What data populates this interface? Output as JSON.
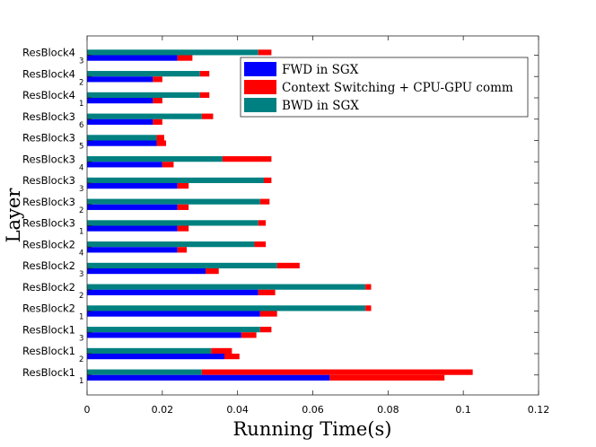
{
  "chart_data": {
    "type": "bar",
    "orientation": "horizontal",
    "stacked": true,
    "title": "",
    "xlabel": "Running Time(s)",
    "ylabel": "Layer",
    "xlim": [
      0,
      0.12
    ],
    "xticks": [
      "0",
      "0.02",
      "0.04",
      "0.06",
      "0.08",
      "0.1",
      "0.12"
    ],
    "grid": false,
    "legend_position": "top-right",
    "legend": [
      {
        "name": "FWD in SGX",
        "color": "#0000ff"
      },
      {
        "name": "Context Switching + CPU-GPU comm",
        "color": "#ff0000"
      },
      {
        "name": "BWD in SGX",
        "color": "#008080"
      }
    ],
    "categories": [
      {
        "label": "ResBlock4",
        "sub": "3"
      },
      {
        "label": "ResBlock4",
        "sub": "2"
      },
      {
        "label": "ResBlock4",
        "sub": "1"
      },
      {
        "label": "ResBlock3",
        "sub": "6"
      },
      {
        "label": "ResBlock3",
        "sub": "5"
      },
      {
        "label": "ResBlock3",
        "sub": "4"
      },
      {
        "label": "ResBlock3",
        "sub": "3"
      },
      {
        "label": "ResBlock3",
        "sub": "2"
      },
      {
        "label": "ResBlock3",
        "sub": "1"
      },
      {
        "label": "ResBlock2",
        "sub": "4"
      },
      {
        "label": "ResBlock2",
        "sub": "3"
      },
      {
        "label": "ResBlock2",
        "sub": "2"
      },
      {
        "label": "ResBlock2",
        "sub": "1"
      },
      {
        "label": "ResBlock1",
        "sub": "3"
      },
      {
        "label": "ResBlock1",
        "sub": "2"
      },
      {
        "label": "ResBlock1",
        "sub": "1"
      }
    ],
    "fwd_bar": {
      "fwd": [
        0.024,
        0.0175,
        0.0175,
        0.0175,
        0.0185,
        0.02,
        0.024,
        0.024,
        0.024,
        0.024,
        0.0315,
        0.0455,
        0.046,
        0.041,
        0.0365,
        0.0645
      ],
      "comm": [
        0.004,
        0.0025,
        0.0025,
        0.0025,
        0.0025,
        0.003,
        0.003,
        0.003,
        0.003,
        0.0025,
        0.0035,
        0.0045,
        0.0045,
        0.004,
        0.004,
        0.0305
      ]
    },
    "bwd_bar": {
      "bwd": [
        0.0455,
        0.03,
        0.03,
        0.0305,
        0.0185,
        0.036,
        0.047,
        0.046,
        0.0455,
        0.0445,
        0.0505,
        0.074,
        0.074,
        0.046,
        0.033,
        0.0305
      ],
      "comm": [
        0.0035,
        0.0025,
        0.0025,
        0.003,
        0.002,
        0.013,
        0.002,
        0.0025,
        0.002,
        0.003,
        0.006,
        0.0015,
        0.0015,
        0.003,
        0.0055,
        0.072
      ]
    }
  }
}
